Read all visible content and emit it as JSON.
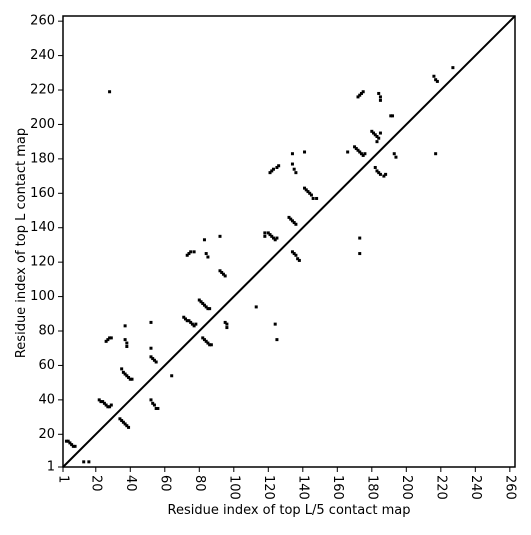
{
  "chart_data": {
    "type": "scatter",
    "xlabel": "Residue index of top L/5 contact map",
    "ylabel": "Residue index of top L contact map",
    "xlim": [
      1,
      263
    ],
    "ylim": [
      1,
      263
    ],
    "xticks": [
      1,
      20,
      40,
      60,
      80,
      100,
      120,
      140,
      160,
      180,
      200,
      220,
      240,
      260
    ],
    "yticks": [
      1,
      20,
      40,
      60,
      80,
      100,
      120,
      140,
      160,
      180,
      200,
      220,
      240,
      260
    ],
    "diagonal": true,
    "series": [
      {
        "color": "#000000",
        "x": [
          3,
          4,
          5,
          6,
          7,
          8,
          13,
          16,
          28,
          22,
          23,
          24,
          25,
          26,
          27,
          28,
          29,
          26,
          27,
          28,
          29,
          35,
          36,
          37,
          38,
          39,
          40,
          41,
          37,
          37,
          38,
          38,
          34,
          35,
          36,
          37,
          38,
          39,
          52,
          52,
          52,
          53,
          54,
          55,
          52,
          53,
          54,
          55,
          56,
          64,
          71,
          72,
          73,
          74,
          75,
          76,
          77,
          78,
          73,
          74,
          75,
          77,
          80,
          81,
          82,
          83,
          84,
          85,
          86,
          83,
          84,
          85,
          82,
          83,
          84,
          85,
          86,
          87,
          92,
          92,
          93,
          94,
          95,
          95,
          96,
          96,
          113,
          118,
          118,
          120,
          121,
          122,
          123,
          124,
          125,
          121,
          122,
          123,
          125,
          126,
          124,
          125,
          132,
          133,
          134,
          135,
          136,
          134,
          134,
          135,
          136,
          134,
          135,
          136,
          137,
          138,
          141,
          141,
          142,
          143,
          144,
          145,
          146,
          148,
          166,
          170,
          171,
          172,
          173,
          174,
          175,
          176,
          173,
          173,
          172,
          173,
          174,
          175,
          180,
          181,
          182,
          183,
          184,
          183,
          185,
          182,
          183,
          184,
          185,
          187,
          188,
          184,
          185,
          185,
          191,
          192,
          193,
          194,
          216,
          217,
          218,
          217,
          227
        ],
        "y": [
          16,
          16,
          15,
          14,
          13,
          13,
          4,
          4,
          219,
          40,
          39,
          39,
          38,
          37,
          36,
          36,
          37,
          74,
          75,
          76,
          76,
          58,
          56,
          55,
          54,
          53,
          52,
          52,
          83,
          75,
          73,
          71,
          29,
          28,
          27,
          26,
          25,
          24,
          85,
          70,
          65,
          64,
          63,
          62,
          40,
          38,
          37,
          35,
          35,
          54,
          88,
          87,
          86,
          86,
          85,
          84,
          83,
          84,
          124,
          125,
          126,
          126,
          98,
          97,
          96,
          95,
          94,
          93,
          93,
          133,
          125,
          123,
          76,
          75,
          74,
          73,
          72,
          72,
          135,
          115,
          114,
          113,
          112,
          85,
          84,
          82,
          94,
          137,
          135,
          137,
          136,
          135,
          134,
          133,
          134,
          172,
          173,
          174,
          175,
          176,
          84,
          75,
          146,
          145,
          144,
          143,
          142,
          183,
          177,
          174,
          172,
          126,
          125,
          124,
          122,
          121,
          184,
          163,
          162,
          161,
          160,
          159,
          157,
          157,
          184,
          187,
          186,
          185,
          184,
          183,
          182,
          183,
          134,
          125,
          216,
          217,
          218,
          219,
          196,
          195,
          194,
          193,
          192,
          190,
          195,
          175,
          173,
          172,
          171,
          170,
          171,
          218,
          216,
          214,
          205,
          205,
          183,
          181,
          228,
          226,
          225,
          183,
          233
        ]
      }
    ]
  }
}
